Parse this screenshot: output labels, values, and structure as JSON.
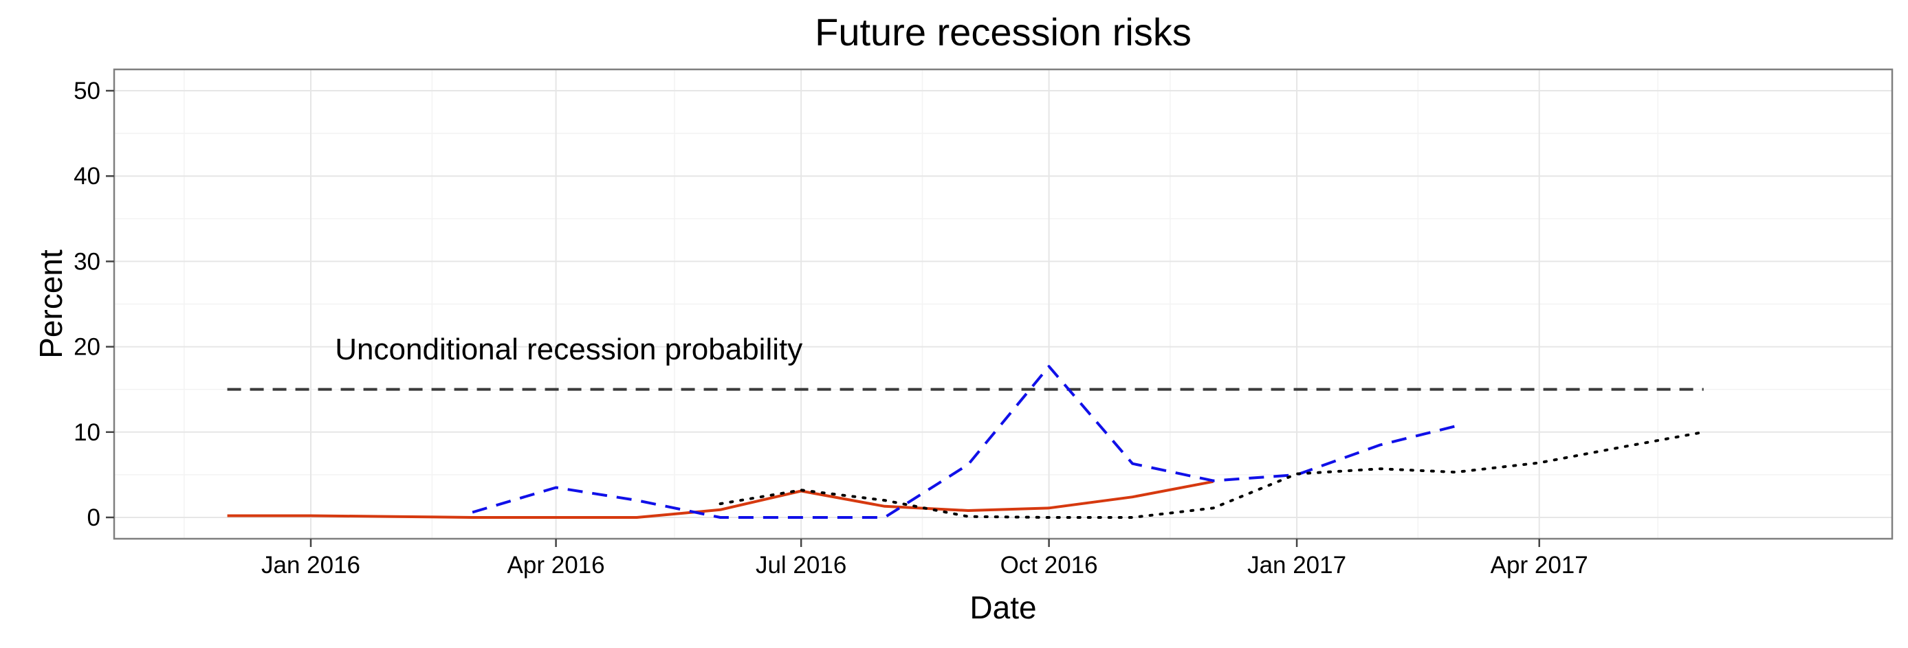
{
  "chart_data": {
    "type": "line",
    "title": "Future recession risks",
    "xlabel": "Date",
    "ylabel": "Percent",
    "xlim": [
      "2015-10-20",
      "2017-08-10"
    ],
    "ylim": [
      -2.5,
      52.5
    ],
    "x_ticks": [
      {
        "date": "2016-01-01",
        "label": "Jan 2016"
      },
      {
        "date": "2016-04-01",
        "label": "Apr 2016"
      },
      {
        "date": "2016-07-01",
        "label": "Jul 2016"
      },
      {
        "date": "2016-10-01",
        "label": "Oct 2016"
      },
      {
        "date": "2017-01-01",
        "label": "Jan 2017"
      },
      {
        "date": "2017-04-01",
        "label": "Apr 2017"
      }
    ],
    "x_minor_ticks": [
      "2015-11-15",
      "2016-02-15",
      "2016-05-15",
      "2016-08-15",
      "2016-11-15",
      "2017-02-15",
      "2017-05-15"
    ],
    "y_ticks": [
      0,
      10,
      20,
      30,
      40,
      50
    ],
    "y_minor_ticks": [
      5,
      15,
      25,
      35,
      45
    ],
    "grid": true,
    "legend": "none",
    "series": [
      {
        "style": "solid",
        "color": "#d6390f",
        "points": [
          {
            "x": "2015-12-01",
            "y": 0.2
          },
          {
            "x": "2016-01-01",
            "y": 0.2
          },
          {
            "x": "2016-02-01",
            "y": 0.1
          },
          {
            "x": "2016-03-01",
            "y": 0.0
          },
          {
            "x": "2016-04-01",
            "y": 0.0
          },
          {
            "x": "2016-05-01",
            "y": 0.0
          },
          {
            "x": "2016-06-01",
            "y": 0.9
          },
          {
            "x": "2016-07-01",
            "y": 3.1
          },
          {
            "x": "2016-08-01",
            "y": 1.3
          },
          {
            "x": "2016-09-01",
            "y": 0.8
          },
          {
            "x": "2016-10-01",
            "y": 1.1
          },
          {
            "x": "2016-11-01",
            "y": 2.4
          },
          {
            "x": "2016-12-01",
            "y": 4.2
          }
        ]
      },
      {
        "style": "dashed",
        "color": "#1010e8",
        "points": [
          {
            "x": "2016-03-01",
            "y": 0.6
          },
          {
            "x": "2016-04-01",
            "y": 3.5
          },
          {
            "x": "2016-05-01",
            "y": 2.0
          },
          {
            "x": "2016-06-01",
            "y": 0.0
          },
          {
            "x": "2016-07-01",
            "y": 0.0
          },
          {
            "x": "2016-08-01",
            "y": 0.0
          },
          {
            "x": "2016-09-01",
            "y": 6.2
          },
          {
            "x": "2016-10-01",
            "y": 17.7
          },
          {
            "x": "2016-11-01",
            "y": 6.3
          },
          {
            "x": "2016-12-01",
            "y": 4.3
          },
          {
            "x": "2017-01-01",
            "y": 5.0
          },
          {
            "x": "2017-02-01",
            "y": 8.5
          },
          {
            "x": "2017-03-01",
            "y": 10.7
          }
        ]
      },
      {
        "style": "dotted",
        "color": "#000000",
        "points": [
          {
            "x": "2016-06-01",
            "y": 1.6
          },
          {
            "x": "2016-07-01",
            "y": 3.2
          },
          {
            "x": "2016-08-01",
            "y": 2.0
          },
          {
            "x": "2016-09-01",
            "y": 0.1
          },
          {
            "x": "2016-10-01",
            "y": 0.0
          },
          {
            "x": "2016-11-01",
            "y": 0.0
          },
          {
            "x": "2016-12-01",
            "y": 1.1
          },
          {
            "x": "2017-01-01",
            "y": 5.1
          },
          {
            "x": "2017-02-01",
            "y": 5.7
          },
          {
            "x": "2017-03-01",
            "y": 5.3
          },
          {
            "x": "2017-04-01",
            "y": 6.4
          },
          {
            "x": "2017-05-01",
            "y": 8.2
          },
          {
            "x": "2017-06-01",
            "y": 10.0
          }
        ]
      }
    ],
    "reference_line": {
      "label": "Unconditional recession probability",
      "y": 15,
      "x_start": "2015-12-01",
      "x_end": "2017-06-01",
      "style": "dashed",
      "color": "#3a3a3a"
    },
    "annotation": {
      "text": "Unconditional recession probability",
      "x": "2016-01-10",
      "y": 19.8
    }
  }
}
